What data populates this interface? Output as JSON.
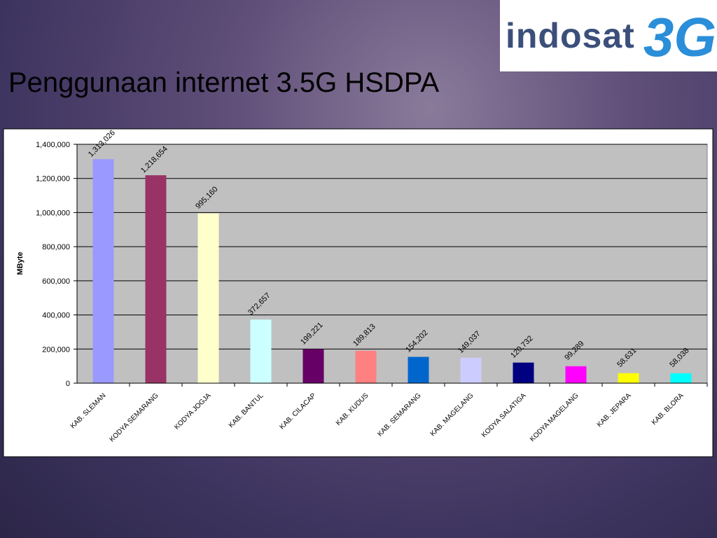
{
  "logo": {
    "brand": "indosat",
    "tag": "3G"
  },
  "chart_data": {
    "type": "bar",
    "title": "Penggunaan internet 3.5G HSDPA",
    "y_label": "MByte",
    "categories": [
      "KAB. SLEMAN",
      "KODYA SEMARANG",
      "KODYA JOGJA",
      "KAB. BANTUL",
      "KAB. CILACAP",
      "KAB. KUDUS",
      "KAB. SEMARANG",
      "KAB. MAGELANG",
      "KODYA SALATIGA",
      "KODYA MAGELANG",
      "KAB. JEPARA",
      "KAB. BLORA"
    ],
    "values": [
      1313026,
      1218654,
      995160,
      372657,
      199221,
      189813,
      154202,
      149037,
      120732,
      99289,
      58631,
      58038
    ],
    "value_labels": [
      "1,313,026",
      "1,218,654",
      "995,160",
      "372,657",
      "199,221",
      "189,813",
      "154,202",
      "149,037",
      "120,732",
      "99,289",
      "58,631",
      "58,038"
    ],
    "colors": [
      "#9999ff",
      "#993366",
      "#ffffcc",
      "#ccffff",
      "#660066",
      "#ff8080",
      "#0066cc",
      "#ccccff",
      "#000080",
      "#ff00ff",
      "#ffff00",
      "#00ffff"
    ],
    "ylim": [
      0,
      1400000
    ],
    "yticks": [
      0,
      {
        "value": 200000,
        "label": "200,000"
      },
      {
        "value": 400000,
        "label": "400,000"
      },
      {
        "value": 600000,
        "label": "600,000"
      },
      {
        "value": 800000,
        "label": "800,000"
      },
      {
        "value": 1000000,
        "label": "1,000,000"
      },
      {
        "value": 1200000,
        "label": "1,200,000"
      },
      {
        "value": 1400000,
        "label": "1,400,000"
      }
    ],
    "grid": true
  }
}
